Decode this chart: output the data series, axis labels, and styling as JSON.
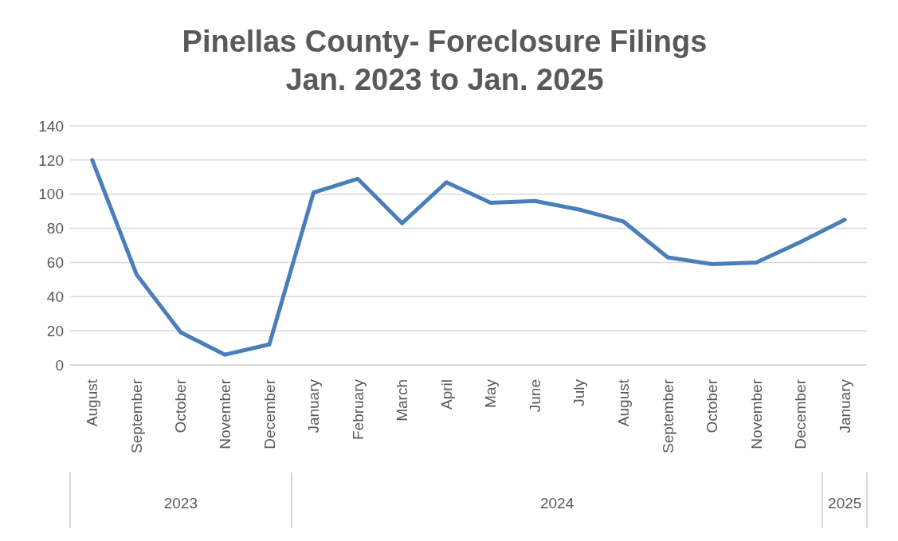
{
  "chart_data": {
    "type": "line",
    "title": "Pinellas County- Foreclosure Filings\nJan. 2023 to Jan. 2025",
    "categories": [
      "August",
      "September",
      "October",
      "November",
      "December",
      "January",
      "February",
      "March",
      "April",
      "May",
      "June",
      "July",
      "August",
      "September",
      "October",
      "November",
      "December",
      "January"
    ],
    "series": [
      {
        "color": "#4a7ebb",
        "values": [
          120,
          53,
          19,
          6,
          12,
          101,
          109,
          83,
          107,
          95,
          96,
          91,
          84,
          63,
          59,
          60,
          72,
          85
        ]
      }
    ],
    "ylim": [
      0,
      140
    ],
    "yticks": [
      0,
      20,
      40,
      60,
      80,
      100,
      120,
      140
    ],
    "grid": "y",
    "marker": "none",
    "line_style": "solid",
    "annotations": [
      "2023",
      "2024",
      "2025"
    ]
  }
}
